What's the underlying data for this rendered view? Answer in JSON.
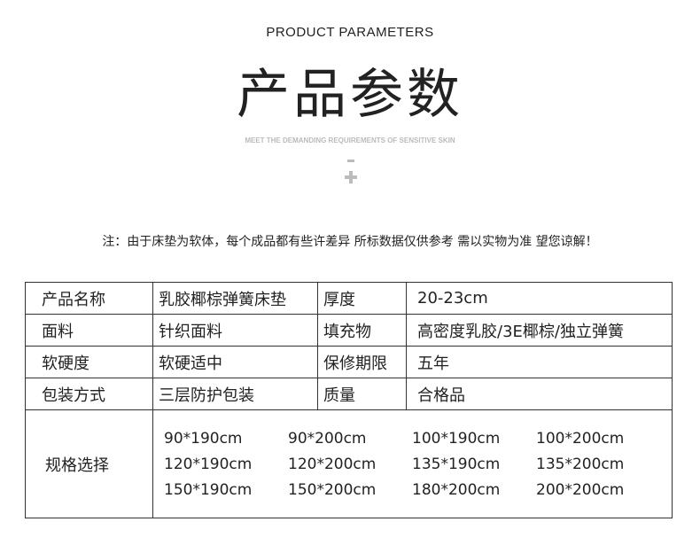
{
  "header": {
    "en_title": "PRODUCT PARAMETERS",
    "cn_title": "产品参数",
    "subtitle": "MEET THE DEMANDING REQUIREMENTS OF SENSITIVE SKIN"
  },
  "note": "注：由于床垫为软体，每个成品都有些许差异 所标数据仅供参考 需以实物为准 望您谅解！",
  "rows": [
    [
      "产品名称",
      "乳胶椰棕弹簧床垫",
      "厚度",
      "20-23cm"
    ],
    [
      "面料",
      "针织面料",
      "填充物",
      "高密度乳胶/3E椰棕/独立弹簧"
    ],
    [
      "软硬度",
      "软硬适中",
      "保修期限",
      "五年"
    ],
    [
      "包装方式",
      "三层防护包装",
      "质量",
      "合格品"
    ]
  ],
  "size_label": "规格选择",
  "sizes": [
    "90*190cm",
    "90*200cm",
    "100*190cm",
    "100*200cm",
    "120*190cm",
    "120*200cm",
    "135*190cm",
    "135*200cm",
    "150*190cm",
    "150*200cm",
    "180*200cm",
    "200*200cm"
  ]
}
